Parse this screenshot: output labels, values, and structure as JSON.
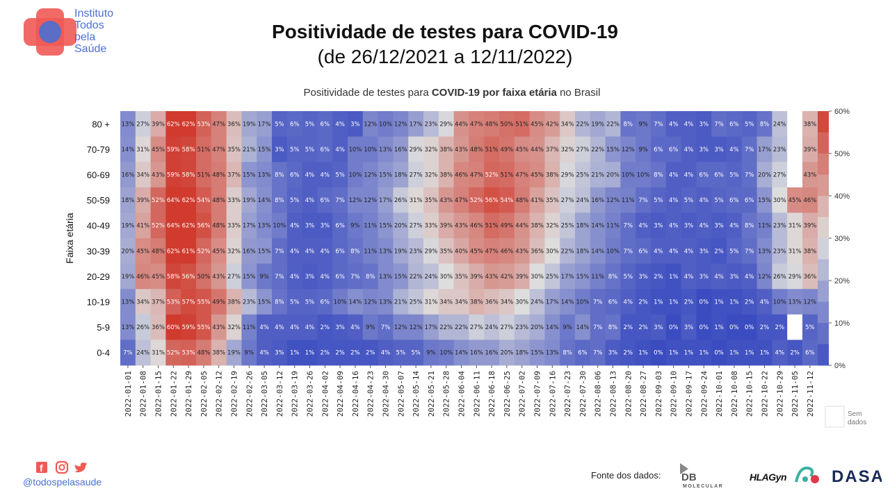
{
  "header": {
    "logo_text": "Instituto\nTodos\npela\nSaúde",
    "title": "Positividade de testes para COVID-19",
    "subtitle": "(de 26/12/2021 a 12/11/2022)"
  },
  "chart_title": {
    "prefix": "Positividade de testes para ",
    "bold": "COVID-19 por faixa etária",
    "suffix": " no Brasil"
  },
  "footer": {
    "handle": "@todospelasaude",
    "fonte": "Fonte dos dados:",
    "db_label": "DB",
    "db_sub": "MOLECULAR",
    "hlagyn": "HLAGyn",
    "dasa": "DASA"
  },
  "colors": {
    "low": "#3b4cc0",
    "mid": "#dddddd",
    "high": "#d03b2e",
    "nodata": "#ffffff"
  },
  "chart_data": {
    "type": "heatmap",
    "title": "Positividade de testes para COVID-19 por faixa etária no Brasil",
    "ylabel": "Faixa etária",
    "xlabel": "",
    "x": [
      "2022-01-01",
      "2022-01-08",
      "2022-01-15",
      "2022-01-22",
      "2022-01-29",
      "2022-02-05",
      "2022-02-12",
      "2022-02-19",
      "2022-02-26",
      "2022-03-05",
      "2022-03-12",
      "2022-03-19",
      "2022-03-26",
      "2022-04-02",
      "2022-04-09",
      "2022-04-16",
      "2022-04-23",
      "2022-04-30",
      "2022-05-07",
      "2022-05-14",
      "2022-05-21",
      "2022-05-28",
      "2022-06-04",
      "2022-06-11",
      "2022-06-18",
      "2022-06-25",
      "2022-07-02",
      "2022-07-09",
      "2022-07-16",
      "2022-07-23",
      "2022-07-30",
      "2022-08-06",
      "2022-08-13",
      "2022-08-20",
      "2022-08-27",
      "2022-09-03",
      "2022-09-10",
      "2022-09-17",
      "2022-09-24",
      "2022-10-01",
      "2022-10-08",
      "2022-10-15",
      "2022-10-22",
      "2022-10-29",
      "2022-11-05",
      "2022-11-12"
    ],
    "y": [
      "80 +",
      "70-79",
      "60-69",
      "50-59",
      "40-49",
      "30-39",
      "20-29",
      "10-19",
      "5-9",
      "0-4"
    ],
    "values": [
      [
        13,
        27,
        39,
        62,
        62,
        53,
        47,
        36,
        19,
        17,
        5,
        6,
        5,
        6,
        4,
        3,
        12,
        10,
        12,
        17,
        23,
        29,
        44,
        47,
        48,
        50,
        51,
        45,
        42,
        34,
        22,
        19,
        22,
        8,
        9,
        7,
        4,
        4,
        3,
        7,
        6,
        5,
        8,
        24,
        null,
        38
      ],
      [
        14,
        31,
        45,
        59,
        58,
        51,
        47,
        35,
        21,
        15,
        3,
        5,
        5,
        6,
        4,
        10,
        10,
        13,
        16,
        29,
        32,
        38,
        43,
        48,
        51,
        49,
        45,
        44,
        37,
        32,
        27,
        22,
        15,
        12,
        9,
        6,
        6,
        4,
        3,
        3,
        4,
        7,
        17,
        23,
        null,
        39
      ],
      [
        16,
        34,
        43,
        59,
        58,
        51,
        48,
        37,
        15,
        13,
        8,
        6,
        4,
        4,
        5,
        10,
        12,
        15,
        18,
        27,
        32,
        38,
        46,
        47,
        52,
        51,
        47,
        45,
        38,
        29,
        25,
        21,
        20,
        10,
        10,
        8,
        4,
        4,
        6,
        6,
        5,
        7,
        20,
        27,
        null,
        43
      ],
      [
        18,
        39,
        52,
        64,
        62,
        54,
        48,
        33,
        19,
        14,
        8,
        5,
        4,
        6,
        7,
        12,
        12,
        17,
        26,
        31,
        35,
        43,
        47,
        52,
        56,
        54,
        48,
        41,
        35,
        27,
        24,
        16,
        12,
        11,
        7,
        5,
        4,
        5,
        4,
        5,
        6,
        6,
        15,
        30,
        45,
        46
      ],
      [
        19,
        41,
        52,
        64,
        62,
        56,
        48,
        33,
        17,
        13,
        10,
        4,
        3,
        3,
        6,
        9,
        11,
        15,
        20,
        27,
        33,
        39,
        43,
        46,
        51,
        49,
        44,
        38,
        32,
        25,
        18,
        14,
        11,
        7,
        4,
        3,
        4,
        3,
        4,
        3,
        4,
        8,
        11,
        23,
        31,
        39
      ],
      [
        20,
        45,
        48,
        62,
        61,
        52,
        45,
        32,
        16,
        15,
        7,
        4,
        4,
        4,
        6,
        8,
        11,
        13,
        19,
        23,
        29,
        35,
        40,
        45,
        47,
        46,
        43,
        36,
        30,
        22,
        18,
        14,
        10,
        7,
        6,
        4,
        4,
        4,
        3,
        2,
        5,
        7,
        13,
        23,
        31,
        38
      ],
      [
        19,
        46,
        45,
        58,
        56,
        50,
        43,
        27,
        15,
        9,
        7,
        4,
        3,
        4,
        6,
        7,
        8,
        13,
        15,
        22,
        24,
        30,
        35,
        39,
        43,
        42,
        39,
        30,
        25,
        17,
        15,
        11,
        8,
        5,
        3,
        2,
        1,
        4,
        3,
        4,
        3,
        4,
        12,
        26,
        29,
        36
      ],
      [
        13,
        34,
        37,
        53,
        57,
        55,
        49,
        38,
        23,
        15,
        8,
        5,
        5,
        6,
        10,
        14,
        12,
        13,
        21,
        25,
        31,
        34,
        34,
        38,
        36,
        34,
        30,
        24,
        17,
        14,
        10,
        7,
        6,
        4,
        2,
        1,
        1,
        2,
        0,
        1,
        1,
        2,
        4,
        10,
        13,
        12
      ],
      [
        13,
        26,
        36,
        60,
        59,
        55,
        43,
        32,
        11,
        4,
        4,
        4,
        4,
        2,
        3,
        4,
        9,
        7,
        12,
        12,
        17,
        22,
        22,
        27,
        24,
        27,
        23,
        20,
        14,
        9,
        14,
        7,
        8,
        2,
        2,
        3,
        0,
        3,
        0,
        1,
        0,
        0,
        2,
        2,
        null,
        5
      ],
      [
        7,
        24,
        31,
        52,
        53,
        48,
        38,
        19,
        9,
        4,
        3,
        1,
        1,
        2,
        2,
        2,
        2,
        4,
        5,
        5,
        9,
        10,
        14,
        16,
        16,
        20,
        18,
        15,
        13,
        8,
        6,
        7,
        3,
        2,
        1,
        0,
        1,
        1,
        1,
        0,
        1,
        1,
        1,
        4,
        2,
        6
      ]
    ],
    "colorbar": {
      "min": 0,
      "max": 60,
      "ticks": [
        "0%",
        "10%",
        "20%",
        "30%",
        "40%",
        "50%",
        "60%"
      ]
    },
    "nodata_label": [
      "Sem",
      "dados"
    ]
  }
}
